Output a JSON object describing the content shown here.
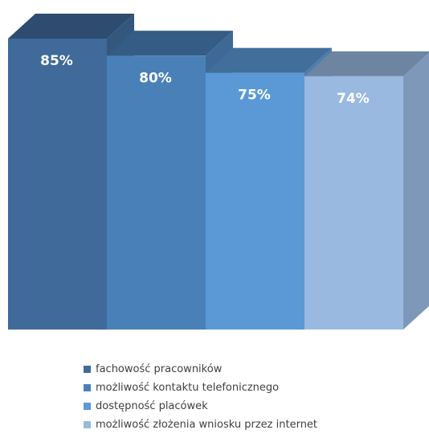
{
  "chart_data": {
    "type": "bar",
    "categories": [
      "fachowość pracowników",
      "możliwość kontaktu telefonicznego",
      "dostępność placówek",
      "możliwość złożenia wniosku przez internet"
    ],
    "values": [
      85,
      80,
      75,
      74
    ],
    "value_labels": [
      "85%",
      "80%",
      "75%",
      "74%"
    ],
    "unit": "%",
    "colors": [
      "#3f6a9a",
      "#4a80b8",
      "#5a99d6",
      "#99b9e1"
    ],
    "style": "3d-columns",
    "legend_position": "bottom",
    "grid": false,
    "title": "",
    "xlabel": "",
    "ylabel": ""
  }
}
